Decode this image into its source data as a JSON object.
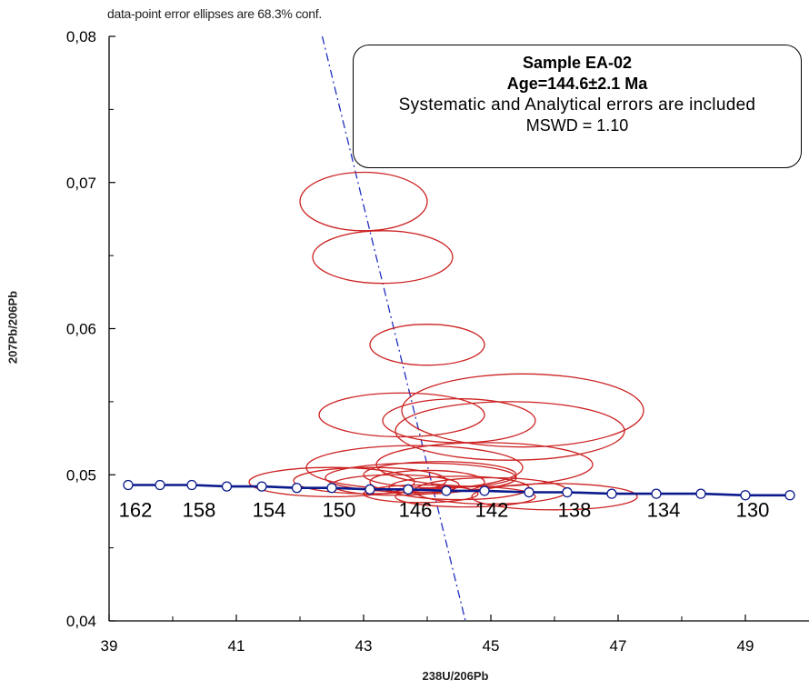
{
  "caption": "data-point error ellipses are 68.3% conf.",
  "annotation": {
    "sample": "Sample EA-02",
    "age": "Age=144.6±2.1 Ma",
    "errors_note": "Systematic and Analytical errors are included",
    "mswd": "MSWD = 1.10"
  },
  "colors": {
    "ellipse": "#cc2222",
    "concordia": "#0a1a8c",
    "regression": "#2030c0",
    "axis": "#000000"
  },
  "chart_data": {
    "type": "scatter",
    "title": "",
    "xlabel": "238U/206Pb",
    "ylabel": "207Pb/206Pb",
    "xlim": [
      39,
      50
    ],
    "ylim": [
      0.04,
      0.08
    ],
    "x_ticks": [
      "39",
      "41",
      "43",
      "45",
      "47",
      "49"
    ],
    "x_tick_values": [
      39,
      41,
      43,
      45,
      47,
      49
    ],
    "y_ticks": [
      "0,04",
      "0,05",
      "0,06",
      "0,07",
      "0,08"
    ],
    "y_tick_values": [
      0.04,
      0.05,
      0.06,
      0.07,
      0.08
    ],
    "grid": false,
    "concordia": {
      "points": [
        [
          39.3,
          0.0493
        ],
        [
          39.8,
          0.0493
        ],
        [
          40.3,
          0.0493
        ],
        [
          40.85,
          0.0492
        ],
        [
          41.4,
          0.0492
        ],
        [
          41.95,
          0.0491
        ],
        [
          42.5,
          0.0491
        ],
        [
          43.1,
          0.049
        ],
        [
          43.7,
          0.049
        ],
        [
          44.3,
          0.0489
        ],
        [
          44.9,
          0.0489
        ],
        [
          45.6,
          0.0488
        ],
        [
          46.2,
          0.0488
        ],
        [
          46.9,
          0.0487
        ],
        [
          47.6,
          0.0487
        ],
        [
          48.3,
          0.0487
        ],
        [
          49.0,
          0.0486
        ],
        [
          49.7,
          0.0486
        ]
      ],
      "age_labels": [
        {
          "label": "162",
          "x": 39.3
        },
        {
          "label": "158",
          "x": 40.3
        },
        {
          "label": "154",
          "x": 41.4
        },
        {
          "label": "150",
          "x": 42.5
        },
        {
          "label": "146",
          "x": 43.7
        },
        {
          "label": "142",
          "x": 44.9
        },
        {
          "label": "138",
          "x": 46.2
        },
        {
          "label": "134",
          "x": 47.6
        },
        {
          "label": "130",
          "x": 49.0
        }
      ]
    },
    "regression_line": [
      [
        42.35,
        0.08
      ],
      [
        44.6,
        0.04
      ]
    ],
    "ellipses": [
      {
        "cx": 43.0,
        "cy": 0.0687,
        "rx": 1.0,
        "ry": 0.002
      },
      {
        "cx": 43.3,
        "cy": 0.0649,
        "rx": 1.1,
        "ry": 0.0018
      },
      {
        "cx": 44.0,
        "cy": 0.0589,
        "rx": 0.9,
        "ry": 0.0014
      },
      {
        "cx": 43.6,
        "cy": 0.0541,
        "rx": 1.3,
        "ry": 0.0015
      },
      {
        "cx": 44.5,
        "cy": 0.0537,
        "rx": 1.2,
        "ry": 0.0015
      },
      {
        "cx": 45.5,
        "cy": 0.0544,
        "rx": 1.9,
        "ry": 0.0025
      },
      {
        "cx": 45.3,
        "cy": 0.053,
        "rx": 1.8,
        "ry": 0.002
      },
      {
        "cx": 43.8,
        "cy": 0.0505,
        "rx": 1.7,
        "ry": 0.0015
      },
      {
        "cx": 44.9,
        "cy": 0.0507,
        "rx": 1.7,
        "ry": 0.0015
      },
      {
        "cx": 43.9,
        "cy": 0.0498,
        "rx": 1.5,
        "ry": 0.001
      },
      {
        "cx": 44.2,
        "cy": 0.05,
        "rx": 1.2,
        "ry": 0.0009
      },
      {
        "cx": 44.0,
        "cy": 0.0495,
        "rx": 0.9,
        "ry": 0.0008
      },
      {
        "cx": 43.1,
        "cy": 0.0496,
        "rx": 1.2,
        "ry": 0.0009
      },
      {
        "cx": 42.5,
        "cy": 0.0495,
        "rx": 1.3,
        "ry": 0.001
      },
      {
        "cx": 43.5,
        "cy": 0.0493,
        "rx": 1.0,
        "ry": 0.0007
      },
      {
        "cx": 44.5,
        "cy": 0.0491,
        "rx": 1.1,
        "ry": 0.0008
      },
      {
        "cx": 45.0,
        "cy": 0.0489,
        "rx": 1.2,
        "ry": 0.0009
      },
      {
        "cx": 46.0,
        "cy": 0.0485,
        "rx": 1.3,
        "ry": 0.0009
      },
      {
        "cx": 44.6,
        "cy": 0.0485,
        "rx": 1.1,
        "ry": 0.0007
      },
      {
        "cx": 43.9,
        "cy": 0.0487,
        "rx": 0.9,
        "ry": 0.0006
      }
    ]
  }
}
